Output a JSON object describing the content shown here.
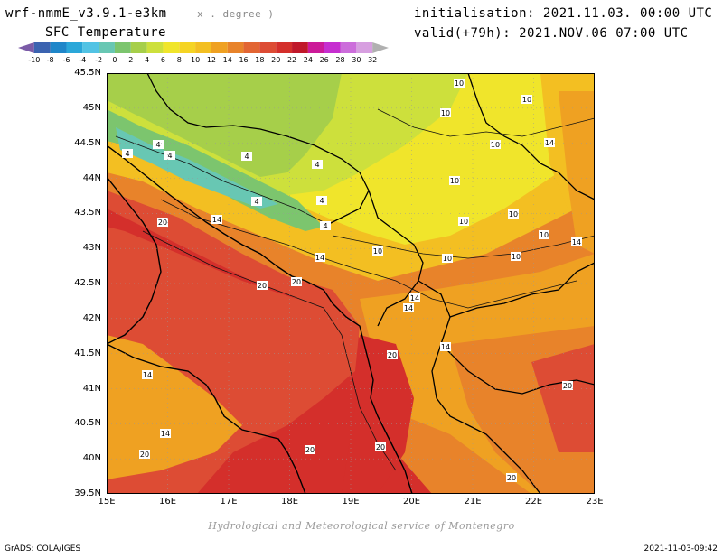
{
  "header": {
    "model": "wrf-nmmE_v3.9.1-e3km",
    "units": "x . degree )",
    "variable": "SFC Temperature",
    "initialisation": "initialisation: 2021.11.03. 00:00 UTC",
    "valid": "valid(+79h): 2021.NOV.06 07:00 UTC"
  },
  "legend": {
    "labels": [
      "-10",
      "-8",
      "-6",
      "-4",
      "-2",
      "0",
      "2",
      "4",
      "6",
      "8",
      "10",
      "12",
      "14",
      "16",
      "18",
      "20",
      "22",
      "24",
      "26",
      "28",
      "30",
      "32"
    ],
    "colors": [
      "#7b5ba7",
      "#3b63b0",
      "#1f86c9",
      "#2aa7d9",
      "#52c3e4",
      "#68c7b3",
      "#7cc56e",
      "#a6cf4a",
      "#cde03c",
      "#f0e52b",
      "#f5d424",
      "#f3bf22",
      "#efa122",
      "#e8832a",
      "#e26533",
      "#dd4c34",
      "#d42f2b",
      "#c0182a",
      "#cc1a99",
      "#c62ed0",
      "#cc6ddb",
      "#d79fe0",
      "#b0b0b0"
    ]
  },
  "map": {
    "lat_labels": [
      "45.5N",
      "45N",
      "44.5N",
      "44N",
      "43.5N",
      "43N",
      "42.5N",
      "42N",
      "41.5N",
      "41N",
      "40.5N",
      "40N",
      "39.5N"
    ],
    "lon_labels": [
      "15E",
      "16E",
      "17E",
      "18E",
      "19E",
      "20E",
      "21E",
      "22E",
      "23E"
    ],
    "contour_labels": [
      "10",
      "10",
      "10",
      "10",
      "14",
      "10",
      "10",
      "10",
      "10",
      "14",
      "10",
      "10",
      "10",
      "4",
      "4",
      "4",
      "4",
      "4",
      "4",
      "4",
      "4",
      "14",
      "20",
      "14",
      "20",
      "20",
      "14",
      "14",
      "14",
      "20",
      "14",
      "20",
      "14",
      "20",
      "20",
      "20",
      "20"
    ]
  },
  "footer": {
    "credit": "Hydrological and Meteorological service of Montenegro",
    "grads": "GrADS: COLA/IGES",
    "timestamp": "2021-11-03-09:42"
  }
}
